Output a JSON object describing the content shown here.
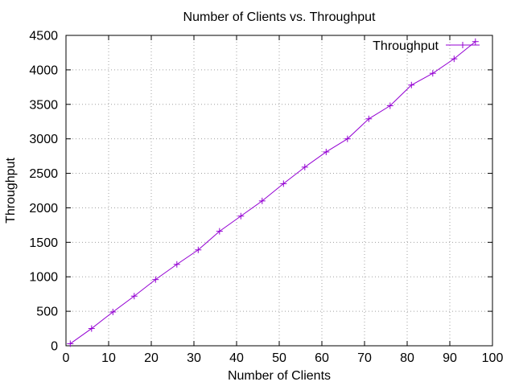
{
  "chart_data": {
    "type": "line",
    "title": "Number of Clients vs. Throughput",
    "xlabel": "Number of Clients",
    "ylabel": "Throughput",
    "xlim": [
      0,
      100
    ],
    "ylim": [
      0,
      4500
    ],
    "x_ticks": [
      0,
      10,
      20,
      30,
      40,
      50,
      60,
      70,
      80,
      90,
      100
    ],
    "y_ticks": [
      0,
      500,
      1000,
      1500,
      2000,
      2500,
      3000,
      3500,
      4000,
      4500
    ],
    "grid": true,
    "legend_position": "top-right",
    "series": [
      {
        "name": "Throughput",
        "color": "#9400d3",
        "marker": "plus",
        "x": [
          1,
          6,
          11,
          16,
          21,
          26,
          31,
          36,
          41,
          46,
          51,
          56,
          61,
          66,
          71,
          76,
          81,
          86,
          91,
          96
        ],
        "y": [
          30,
          250,
          490,
          720,
          960,
          1180,
          1390,
          1660,
          1880,
          2100,
          2350,
          2590,
          2810,
          3000,
          3290,
          3480,
          3780,
          3950,
          4160,
          4410
        ]
      }
    ]
  }
}
